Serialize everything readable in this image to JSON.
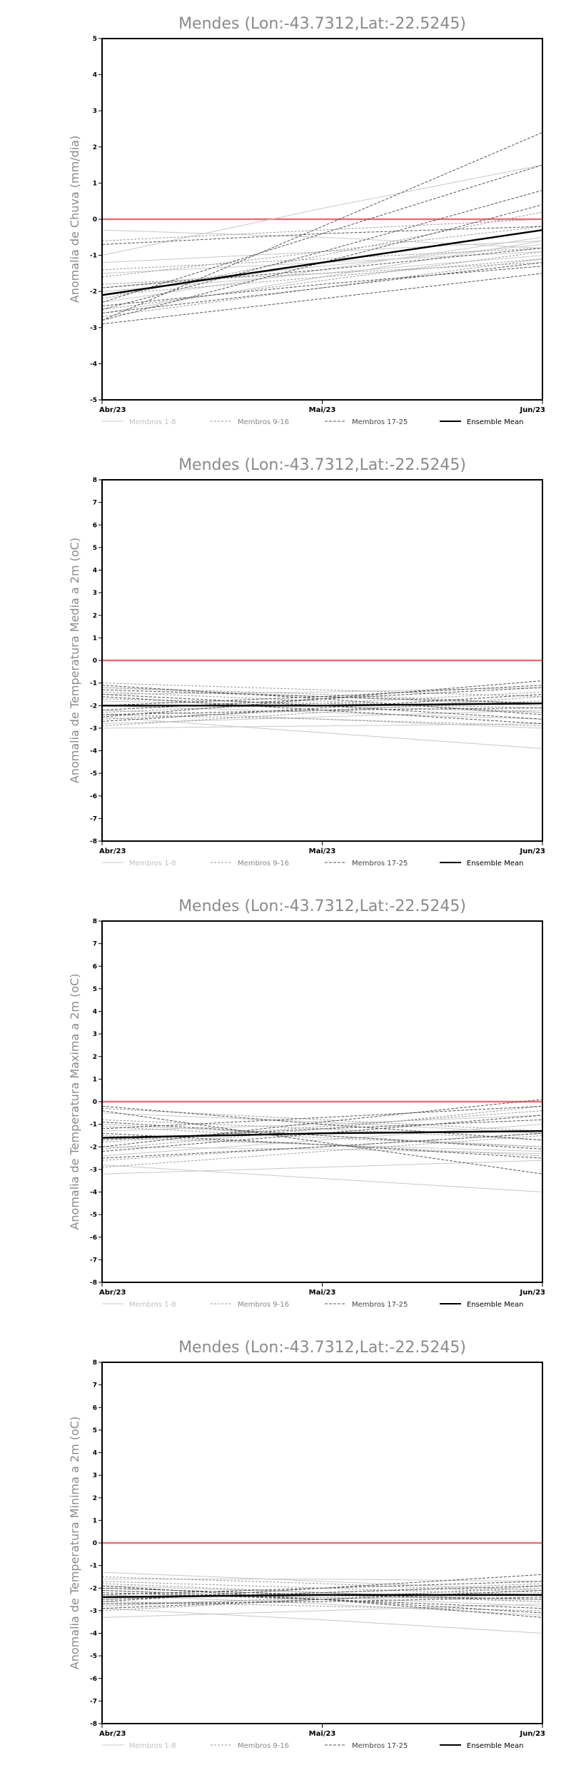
{
  "colors": {
    "zero_line": "#e8707a",
    "members_1_8": "#c8c8c8",
    "members_9_16": "#9a9a9a",
    "members_17_25": "#555555",
    "ensemble_mean": "#000000",
    "title": "#8a8a8a"
  },
  "chart_data": [
    {
      "type": "line",
      "title": "Mendes (Lon:-43.7312,Lat:-22.5245)",
      "xlabel": "",
      "ylabel": "Anomalia de Chuva (mm/dia)",
      "x": [
        "Abr/23",
        "Mai/23",
        "Jun/23"
      ],
      "ylim": [
        -5,
        5
      ],
      "yticks": [
        -5,
        -4,
        -3,
        -2,
        -1,
        0,
        1,
        2,
        3,
        4,
        5
      ],
      "grid": false,
      "legend": [
        "Membros 1-8",
        "Membros 9-16",
        "Membros 17-25",
        "Ensemble Mean"
      ],
      "series": [
        {
          "group": 1,
          "values": [
            -1.0,
            0.3,
            1.5
          ]
        },
        {
          "group": 1,
          "values": [
            -0.3,
            -0.5,
            -0.8
          ]
        },
        {
          "group": 1,
          "values": [
            -1.9,
            -1.3,
            -0.7
          ]
        },
        {
          "group": 1,
          "values": [
            -2.3,
            -1.4,
            -0.5
          ]
        },
        {
          "group": 1,
          "values": [
            -1.5,
            -1.2,
            -0.9
          ]
        },
        {
          "group": 1,
          "values": [
            -2.6,
            -1.6,
            -0.6
          ]
        },
        {
          "group": 1,
          "values": [
            -1.2,
            -0.9,
            -0.6
          ]
        },
        {
          "group": 1,
          "values": [
            -2.0,
            -1.5,
            -1.0
          ]
        },
        {
          "group": 2,
          "values": [
            -1.6,
            -0.9,
            -0.2
          ]
        },
        {
          "group": 2,
          "values": [
            -2.2,
            -1.0,
            0.2
          ]
        },
        {
          "group": 2,
          "values": [
            -2.5,
            -1.7,
            -0.9
          ]
        },
        {
          "group": 2,
          "values": [
            -1.8,
            -1.5,
            -1.2
          ]
        },
        {
          "group": 2,
          "values": [
            -0.6,
            -0.3,
            0.0
          ]
        },
        {
          "group": 2,
          "values": [
            -2.7,
            -1.9,
            -1.1
          ]
        },
        {
          "group": 2,
          "values": [
            -1.4,
            -1.1,
            -0.8
          ]
        },
        {
          "group": 2,
          "values": [
            -2.1,
            -1.6,
            -1.1
          ]
        },
        {
          "group": 3,
          "values": [
            -2.8,
            -0.2,
            2.4
          ]
        },
        {
          "group": 3,
          "values": [
            -2.3,
            -0.4,
            1.5
          ]
        },
        {
          "group": 3,
          "values": [
            -2.5,
            -0.9,
            0.8
          ]
        },
        {
          "group": 3,
          "values": [
            -2.8,
            -1.2,
            0.4
          ]
        },
        {
          "group": 3,
          "values": [
            -0.7,
            -0.4,
            -0.2
          ]
        },
        {
          "group": 3,
          "values": [
            -2.9,
            -2.2,
            -1.5
          ]
        },
        {
          "group": 3,
          "values": [
            -2.6,
            -1.9,
            -1.2
          ]
        },
        {
          "group": 3,
          "values": [
            -2.4,
            -1.8,
            -1.3
          ]
        },
        {
          "group": 3,
          "values": [
            -1.9,
            -1.4,
            -0.8
          ]
        },
        {
          "group": 4,
          "values": [
            -2.1,
            -1.2,
            -0.3
          ]
        }
      ]
    },
    {
      "type": "line",
      "title": "Mendes (Lon:-43.7312,Lat:-22.5245)",
      "xlabel": "",
      "ylabel": "Anomalia de Temperatura Media a 2m (oC)",
      "x": [
        "Abr/23",
        "Mai/23",
        "Jun/23"
      ],
      "ylim": [
        -8,
        8
      ],
      "yticks": [
        -8,
        -7,
        -6,
        -5,
        -4,
        -3,
        -2,
        -1,
        0,
        1,
        2,
        3,
        4,
        5,
        6,
        7,
        8
      ],
      "grid": false,
      "legend": [
        "Membros 1-8",
        "Membros 9-16",
        "Membros 17-25",
        "Ensemble Mean"
      ],
      "series": [
        {
          "group": 1,
          "values": [
            -2.5,
            -3.2,
            -3.9
          ]
        },
        {
          "group": 1,
          "values": [
            -3.0,
            -2.9,
            -2.8
          ]
        },
        {
          "group": 1,
          "values": [
            -1.2,
            -1.6,
            -2.0
          ]
        },
        {
          "group": 1,
          "values": [
            -2.0,
            -2.3,
            -2.6
          ]
        },
        {
          "group": 1,
          "values": [
            -1.5,
            -1.4,
            -1.2
          ]
        },
        {
          "group": 1,
          "values": [
            -2.8,
            -2.5,
            -2.2
          ]
        },
        {
          "group": 1,
          "values": [
            -1.8,
            -2.0,
            -2.3
          ]
        },
        {
          "group": 1,
          "values": [
            -2.2,
            -2.6,
            -3.0
          ]
        },
        {
          "group": 2,
          "values": [
            -1.0,
            -1.3,
            -1.6
          ]
        },
        {
          "group": 2,
          "values": [
            -2.6,
            -2.2,
            -1.8
          ]
        },
        {
          "group": 2,
          "values": [
            -1.4,
            -1.8,
            -2.3
          ]
        },
        {
          "group": 2,
          "values": [
            -2.9,
            -2.3,
            -1.6
          ]
        },
        {
          "group": 2,
          "values": [
            -1.7,
            -1.9,
            -2.1
          ]
        },
        {
          "group": 2,
          "values": [
            -2.3,
            -1.9,
            -1.4
          ]
        },
        {
          "group": 2,
          "values": [
            -1.2,
            -1.5,
            -1.9
          ]
        },
        {
          "group": 2,
          "values": [
            -2.4,
            -2.6,
            -2.9
          ]
        },
        {
          "group": 3,
          "values": [
            -2.5,
            -1.7,
            -0.9
          ]
        },
        {
          "group": 3,
          "values": [
            -1.1,
            -1.7,
            -2.4
          ]
        },
        {
          "group": 3,
          "values": [
            -2.2,
            -1.7,
            -1.2
          ]
        },
        {
          "group": 3,
          "values": [
            -1.3,
            -1.6,
            -1.9
          ]
        },
        {
          "group": 3,
          "values": [
            -2.7,
            -2.1,
            -1.5
          ]
        },
        {
          "group": 3,
          "values": [
            -1.5,
            -2.0,
            -2.6
          ]
        },
        {
          "group": 3,
          "values": [
            -2.0,
            -1.6,
            -1.1
          ]
        },
        {
          "group": 3,
          "values": [
            -1.6,
            -2.2,
            -2.8
          ]
        },
        {
          "group": 3,
          "values": [
            -2.4,
            -2.2,
            -2.1
          ]
        },
        {
          "group": 4,
          "values": [
            -2.0,
            -2.0,
            -1.9
          ]
        }
      ]
    },
    {
      "type": "line",
      "title": "Mendes (Lon:-43.7312,Lat:-22.5245)",
      "xlabel": "",
      "ylabel": "Anomalia de Temperatura Maxima a 2m (oC)",
      "x": [
        "Abr/23",
        "Mai/23",
        "Jun/23"
      ],
      "ylim": [
        -8,
        8
      ],
      "yticks": [
        -8,
        -7,
        -6,
        -5,
        -4,
        -3,
        -2,
        -1,
        0,
        1,
        2,
        3,
        4,
        5,
        6,
        7,
        8
      ],
      "grid": false,
      "legend": [
        "Membros 1-8",
        "Membros 9-16",
        "Membros 17-25",
        "Ensemble Mean"
      ],
      "series": [
        {
          "group": 1,
          "values": [
            -2.8,
            -3.4,
            -4.0
          ]
        },
        {
          "group": 1,
          "values": [
            -3.2,
            -2.9,
            -2.6
          ]
        },
        {
          "group": 1,
          "values": [
            -0.5,
            -0.9,
            -1.4
          ]
        },
        {
          "group": 1,
          "values": [
            -1.6,
            -1.9,
            -2.2
          ]
        },
        {
          "group": 1,
          "values": [
            -2.4,
            -1.7,
            -1.0
          ]
        },
        {
          "group": 1,
          "values": [
            -1.0,
            -1.5,
            -2.0
          ]
        },
        {
          "group": 1,
          "values": [
            -2.0,
            -2.1,
            -2.3
          ]
        },
        {
          "group": 1,
          "values": [
            -1.3,
            -1.0,
            -0.6
          ]
        },
        {
          "group": 2,
          "values": [
            -0.3,
            -0.8,
            -1.3
          ]
        },
        {
          "group": 2,
          "values": [
            -1.8,
            -1.1,
            -0.4
          ]
        },
        {
          "group": 2,
          "values": [
            -2.6,
            -2.0,
            -1.4
          ]
        },
        {
          "group": 2,
          "values": [
            -1.1,
            -1.6,
            -2.0
          ]
        },
        {
          "group": 2,
          "values": [
            -2.1,
            -1.2,
            -0.2
          ]
        },
        {
          "group": 2,
          "values": [
            -1.5,
            -1.9,
            -2.4
          ]
        },
        {
          "group": 2,
          "values": [
            -0.8,
            -1.2,
            -1.7
          ]
        },
        {
          "group": 2,
          "values": [
            -2.9,
            -2.2,
            -1.5
          ]
        },
        {
          "group": 3,
          "values": [
            -2.0,
            -0.9,
            0.1
          ]
        },
        {
          "group": 3,
          "values": [
            -0.4,
            -1.8,
            -3.2
          ]
        },
        {
          "group": 3,
          "values": [
            -1.2,
            -0.7,
            -0.2
          ]
        },
        {
          "group": 3,
          "values": [
            -2.5,
            -2.0,
            -1.4
          ]
        },
        {
          "group": 3,
          "values": [
            -0.9,
            -1.5,
            -2.1
          ]
        },
        {
          "group": 3,
          "values": [
            -1.7,
            -1.2,
            -0.8
          ]
        },
        {
          "group": 3,
          "values": [
            -0.2,
            -1.0,
            -1.7
          ]
        },
        {
          "group": 3,
          "values": [
            -1.4,
            -1.9,
            -2.5
          ]
        },
        {
          "group": 3,
          "values": [
            -2.2,
            -1.4,
            -0.6
          ]
        },
        {
          "group": 4,
          "values": [
            -1.6,
            -1.4,
            -1.3
          ]
        }
      ]
    },
    {
      "type": "line",
      "title": "Mendes (Lon:-43.7312,Lat:-22.5245)",
      "xlabel": "",
      "ylabel": "Anomalia de Temperatura Minima a 2m (oC)",
      "x": [
        "Abr/23",
        "Mai/23",
        "Jun/23"
      ],
      "ylim": [
        -8,
        8
      ],
      "yticks": [
        -8,
        -7,
        -6,
        -5,
        -4,
        -3,
        -2,
        -1,
        0,
        1,
        2,
        3,
        4,
        5,
        6,
        7,
        8
      ],
      "grid": false,
      "legend": [
        "Membros 1-8",
        "Membros 9-16",
        "Membros 17-25",
        "Ensemble Mean"
      ],
      "series": [
        {
          "group": 1,
          "values": [
            -2.9,
            -3.4,
            -4.0
          ]
        },
        {
          "group": 1,
          "values": [
            -3.3,
            -3.0,
            -2.7
          ]
        },
        {
          "group": 1,
          "values": [
            -1.3,
            -1.7,
            -2.1
          ]
        },
        {
          "group": 1,
          "values": [
            -2.1,
            -2.4,
            -2.8
          ]
        },
        {
          "group": 1,
          "values": [
            -1.6,
            -1.6,
            -1.7
          ]
        },
        {
          "group": 1,
          "values": [
            -2.7,
            -2.5,
            -2.3
          ]
        },
        {
          "group": 1,
          "values": [
            -1.9,
            -2.2,
            -2.5
          ]
        },
        {
          "group": 1,
          "values": [
            -2.3,
            -2.7,
            -3.2
          ]
        },
        {
          "group": 2,
          "values": [
            -1.5,
            -1.8,
            -2.2
          ]
        },
        {
          "group": 2,
          "values": [
            -2.8,
            -2.4,
            -2.0
          ]
        },
        {
          "group": 2,
          "values": [
            -1.8,
            -2.2,
            -2.6
          ]
        },
        {
          "group": 2,
          "values": [
            -3.0,
            -2.5,
            -1.9
          ]
        },
        {
          "group": 2,
          "values": [
            -2.0,
            -2.3,
            -2.6
          ]
        },
        {
          "group": 2,
          "values": [
            -2.5,
            -2.2,
            -1.8
          ]
        },
        {
          "group": 2,
          "values": [
            -1.7,
            -2.0,
            -2.3
          ]
        },
        {
          "group": 2,
          "values": [
            -2.6,
            -2.8,
            -3.0
          ]
        },
        {
          "group": 3,
          "values": [
            -2.6,
            -2.0,
            -1.4
          ]
        },
        {
          "group": 3,
          "values": [
            -1.9,
            -2.5,
            -3.1
          ]
        },
        {
          "group": 3,
          "values": [
            -2.3,
            -2.0,
            -1.7
          ]
        },
        {
          "group": 3,
          "values": [
            -2.0,
            -2.3,
            -2.5
          ]
        },
        {
          "group": 3,
          "values": [
            -2.9,
            -2.5,
            -2.1
          ]
        },
        {
          "group": 3,
          "values": [
            -2.2,
            -2.5,
            -2.9
          ]
        },
        {
          "group": 3,
          "values": [
            -2.5,
            -2.2,
            -1.9
          ]
        },
        {
          "group": 3,
          "values": [
            -2.1,
            -2.5,
            -3.3
          ]
        },
        {
          "group": 3,
          "values": [
            -2.7,
            -2.6,
            -2.4
          ]
        },
        {
          "group": 4,
          "values": [
            -2.4,
            -2.3,
            -2.3
          ]
        }
      ]
    }
  ]
}
